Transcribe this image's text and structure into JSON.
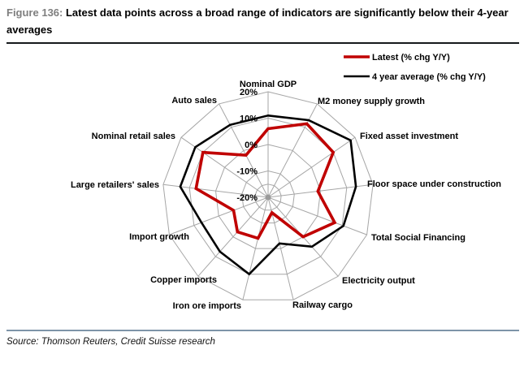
{
  "figure": {
    "label": "Figure 136:",
    "title": "Latest data points across a broad range of indicators are significantly below their 4-year averages"
  },
  "source": "Source: Thomson Reuters, Credit Suisse research",
  "chart_data": {
    "type": "radar",
    "title": "",
    "categories": [
      "Nominal GDP",
      "M2 money supply growth",
      "Fixed asset investment",
      "Floor space under construction",
      "Total Social Financing",
      "Electricity output",
      "Railway cargo",
      "Iron ore imports",
      "Copper imports",
      "Import growth",
      "Large retailers' sales",
      "Nominal retail sales",
      "Auto sales"
    ],
    "series": [
      {
        "name": "4 year average (% chg Y/Y)",
        "color": "#000000",
        "values": [
          11,
          13,
          18,
          13.5,
          10.5,
          5,
          -2,
          10,
          7.5,
          7,
          13.5,
          13.5,
          11
        ]
      },
      {
        "name": "Latest (% chg Y/Y)",
        "color": "#c00000",
        "values": [
          6,
          11.5,
          10,
          -1,
          7,
          0,
          -14,
          -4,
          -2.5,
          -6,
          7.5,
          10,
          -2
        ]
      }
    ],
    "axis": {
      "min": -20,
      "max": 20,
      "tick_values": [
        20,
        10,
        0,
        -10,
        -20
      ],
      "tick_labels": [
        "20%",
        "10%",
        "0%",
        "-10%",
        "-20%"
      ],
      "grid_ring_values": [
        20,
        10,
        0,
        -10,
        -15
      ],
      "grid_color": "#a6a6a6",
      "unit": "% chg Y/Y"
    },
    "legend_position": "top-right",
    "legend_order": [
      "Latest (% chg Y/Y)",
      "4 year average (% chg Y/Y)"
    ]
  }
}
